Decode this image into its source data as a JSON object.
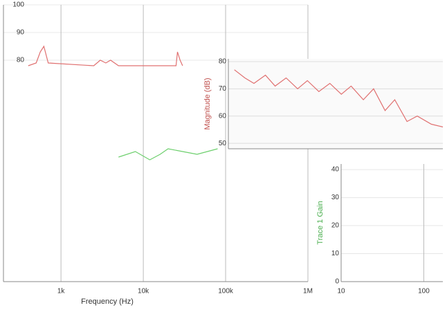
{
  "chart_data": [
    {
      "type": "line",
      "xlabel": "Frequency (Hz)",
      "xscale": "log",
      "xlim": [
        200,
        1000000
      ],
      "xticks": [
        {
          "value": 1000,
          "label": "1k"
        },
        {
          "value": 10000,
          "label": "10k"
        },
        {
          "value": 100000,
          "label": "100k"
        },
        {
          "value": 1000000,
          "label": "1M"
        }
      ],
      "ylim": [
        0,
        100
      ],
      "yticks": [
        80,
        90,
        100
      ],
      "grid": true,
      "series": [
        {
          "color": "#e07070",
          "x": [
            400,
            500,
            560,
            620,
            700,
            2500,
            3000,
            3500,
            4000,
            5000,
            25000,
            26000,
            28000,
            30000
          ],
          "values": [
            78,
            79,
            83,
            85,
            79,
            78,
            80,
            79,
            80,
            78,
            78,
            83,
            80,
            78
          ]
        },
        {
          "color": "#6ccf6c",
          "x": [
            5000,
            8000,
            12000,
            16000,
            20000,
            30000,
            45000,
            60000,
            80000
          ],
          "values": [
            45,
            47,
            44,
            46,
            48,
            47,
            46,
            47,
            48
          ]
        }
      ]
    },
    {
      "type": "line",
      "ylabel": "Magnitude (dB)",
      "xscale": "log",
      "xlim": [
        100000,
        3000000
      ],
      "ylim": [
        48,
        81
      ],
      "yticks": [
        50,
        60,
        70,
        80
      ],
      "grid": true,
      "series": [
        {
          "color": "#e07070",
          "x": [
            110000,
            130000,
            150000,
            180000,
            210000,
            250000,
            300000,
            350000,
            420000,
            500000,
            600000,
            700000,
            850000,
            1000000,
            1200000,
            1400000,
            1700000,
            2000000,
            2500000,
            3000000
          ],
          "values": [
            77,
            74,
            72,
            75,
            71,
            74,
            70,
            73,
            69,
            72,
            68,
            71,
            66,
            70,
            62,
            66,
            58,
            60,
            57,
            56
          ]
        }
      ]
    },
    {
      "type": "line",
      "ylabel": "Trace 1 Gain",
      "xscale": "log",
      "xlim": [
        10,
        170
      ],
      "xticks": [
        10,
        100
      ],
      "ylim": [
        0,
        42
      ],
      "yticks": [
        0,
        10,
        20,
        30,
        40
      ],
      "grid": true,
      "series": []
    }
  ]
}
